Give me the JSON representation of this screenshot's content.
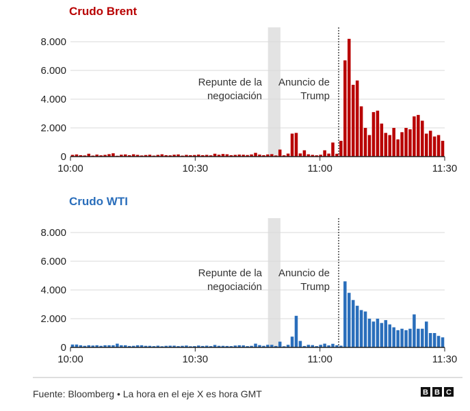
{
  "source_text": "Fuente: Bloomberg • La hora en el eje X es hora GMT",
  "logo": {
    "letters": [
      "B",
      "B",
      "C"
    ]
  },
  "annotations": {
    "rebound": [
      "Repunte de la",
      "negociación"
    ],
    "trump": [
      "Anuncio de",
      "Trump"
    ]
  },
  "chart_data": [
    {
      "type": "bar",
      "title": "Crudo Brent",
      "color": "#b80000",
      "x_ticks": [
        "10:00",
        "10:30",
        "11:00",
        "11:30"
      ],
      "y_ticks": [
        "0",
        "2.000",
        "4.000",
        "6.000",
        "8.000"
      ],
      "ylim": [
        0,
        9000
      ],
      "x_range_minutes": [
        0,
        90
      ],
      "shaded_region_minutes": [
        47.5,
        50.5
      ],
      "event_line_minute": 64.5,
      "values": [
        120,
        150,
        100,
        80,
        200,
        70,
        140,
        90,
        120,
        170,
        230,
        60,
        130,
        150,
        100,
        160,
        120,
        80,
        110,
        130,
        70,
        120,
        160,
        100,
        90,
        130,
        150,
        70,
        120,
        100,
        110,
        140,
        100,
        120,
        90,
        200,
        130,
        180,
        160,
        100,
        120,
        140,
        130,
        110,
        150,
        260,
        140,
        100,
        150,
        170,
        80,
        490,
        90,
        210,
        1600,
        1650,
        220,
        440,
        160,
        120,
        90,
        130,
        440,
        210,
        980,
        200,
        1100,
        6700,
        8200,
        5000,
        5300,
        3500,
        2000,
        1500,
        3100,
        3200,
        2300,
        1650,
        1500,
        2000,
        1200,
        1700,
        2000,
        1900,
        2800,
        2900,
        2500,
        1600,
        1800,
        1400,
        1500,
        1100
      ]
    },
    {
      "type": "bar",
      "title": "Crudo WTI",
      "color": "#2a6ebb",
      "x_ticks": [
        "10:00",
        "10:30",
        "11:00",
        "11:30"
      ],
      "y_ticks": [
        "0",
        "2.000",
        "4.000",
        "6.000",
        "8.000"
      ],
      "ylim": [
        0,
        9000
      ],
      "x_range_minutes": [
        0,
        90
      ],
      "shaded_region_minutes": [
        47.5,
        50.5
      ],
      "event_line_minute": 64.5,
      "values": [
        200,
        200,
        150,
        110,
        150,
        130,
        150,
        110,
        150,
        150,
        150,
        260,
        150,
        150,
        100,
        110,
        150,
        150,
        110,
        110,
        90,
        120,
        80,
        110,
        120,
        120,
        90,
        110,
        130,
        80,
        90,
        130,
        100,
        120,
        90,
        170,
        110,
        110,
        100,
        90,
        130,
        150,
        140,
        90,
        110,
        260,
        160,
        110,
        180,
        180,
        100,
        400,
        80,
        180,
        750,
        2200,
        450,
        100,
        180,
        160,
        90,
        180,
        260,
        140,
        250,
        150,
        120,
        4600,
        3800,
        3300,
        2900,
        2600,
        2500,
        2000,
        1800,
        2000,
        1700,
        1900,
        1600,
        1400,
        1200,
        1300,
        1200,
        1300,
        2300,
        1300,
        1300,
        1800,
        1000,
        1000,
        800,
        700
      ]
    }
  ]
}
